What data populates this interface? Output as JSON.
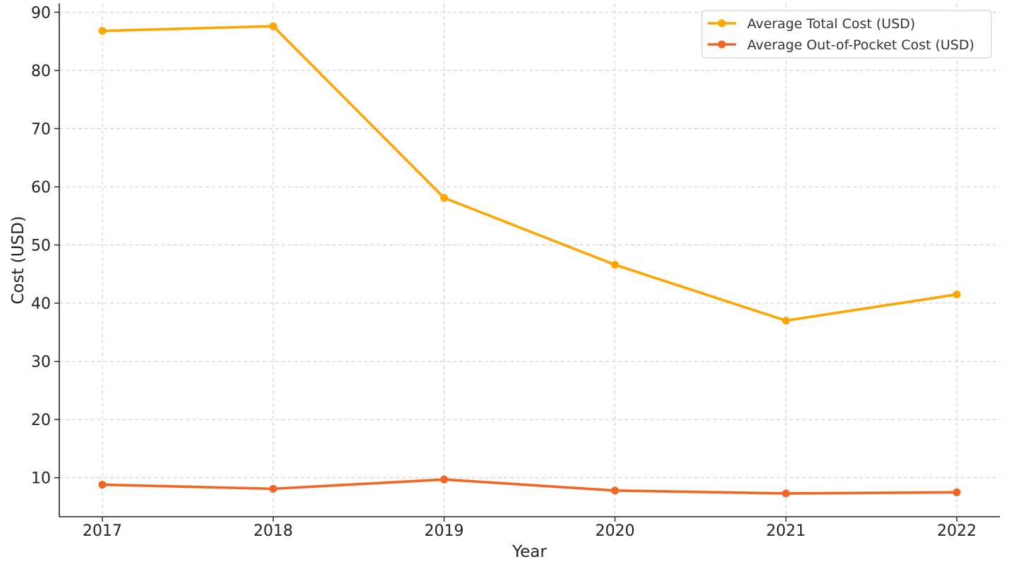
{
  "chart_data": {
    "type": "line",
    "title": "",
    "xlabel": "Year",
    "ylabel": "Cost (USD)",
    "categories": [
      "2017",
      "2018",
      "2019",
      "2020",
      "2021",
      "2022"
    ],
    "yticks": [
      10,
      20,
      30,
      40,
      50,
      60,
      70,
      80,
      90
    ],
    "ylim": [
      3.3,
      91.5
    ],
    "grid": true,
    "legend_position": "top-right",
    "series": [
      {
        "name": "Average Total Cost (USD)",
        "color": "#FFA500",
        "values": [
          86.8,
          87.6,
          58.1,
          46.6,
          37.0,
          41.5
        ]
      },
      {
        "name": "Average Out-of-Pocket Cost (USD)",
        "color": "#F26522",
        "values": [
          8.8,
          8.1,
          9.7,
          7.8,
          7.3,
          7.5
        ]
      }
    ]
  }
}
